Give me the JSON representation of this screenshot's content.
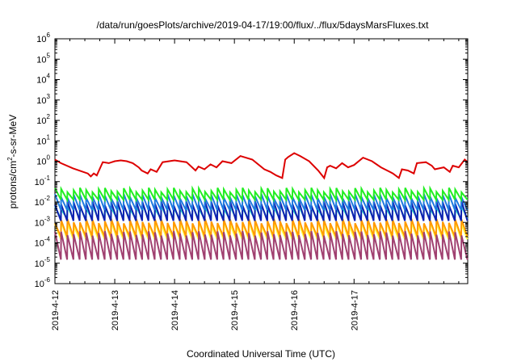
{
  "chart_data": {
    "type": "line",
    "title": "/data/run/goesPlots/archive/2019-04-17/19:00/flux/../flux/5daysMarsFluxes.txt",
    "xlabel": "Coordinated Universal Time (UTC)",
    "ylabel": {
      "base": "protons/cm",
      "sup": "2",
      "rest": "-s-sr-MeV"
    },
    "yscale": "log",
    "ylim_exponents": [
      -6,
      6
    ],
    "y_tick_labels": [
      {
        "base": "10",
        "exp": "-6"
      },
      {
        "base": "10",
        "exp": "-5"
      },
      {
        "base": "10",
        "exp": "-4"
      },
      {
        "base": "10",
        "exp": "-3"
      },
      {
        "base": "10",
        "exp": "-2"
      },
      {
        "base": "10",
        "exp": "-1"
      },
      {
        "base": "10",
        "exp": "0"
      },
      {
        "base": "10",
        "exp": "1"
      },
      {
        "base": "10",
        "exp": "2"
      },
      {
        "base": "10",
        "exp": "3"
      },
      {
        "base": "10",
        "exp": "4"
      },
      {
        "base": "10",
        "exp": "5"
      },
      {
        "base": "10",
        "exp": "6"
      }
    ],
    "x_tick_labels": [
      "2019-4-12",
      "2019-4-13",
      "2019-4-14",
      "2019-4-15",
      "2019-4-16",
      "2019-4-17"
    ],
    "xlim_days": [
      0,
      6.9
    ],
    "x_tick_days": [
      0,
      1,
      2,
      3,
      4,
      5
    ],
    "grid": false,
    "legend": "none",
    "series": [
      {
        "color": "#dd0000",
        "x": [
          0,
          0.1,
          0.3,
          0.55,
          0.6,
          0.65,
          0.7,
          0.76,
          0.8,
          0.9,
          1,
          1.1,
          1.2,
          1.3,
          1.4,
          1.45,
          1.55,
          1.6,
          1.7,
          1.8,
          2,
          2.2,
          2.35,
          2.4,
          2.5,
          2.6,
          2.7,
          2.8,
          2.95,
          3.1,
          3.3,
          3.5,
          3.6,
          3.7,
          3.8,
          3.85,
          3.9,
          4,
          4.1,
          4.25,
          4.4,
          4.5,
          4.55,
          4.6,
          4.7,
          4.8,
          4.9,
          5,
          5.15,
          5.3,
          5.45,
          5.6,
          5.65,
          5.75,
          5.8,
          5.9,
          6.0,
          6.05,
          6.2,
          6.3,
          6.35,
          6.5,
          6.6,
          6.65,
          6.75,
          6.85,
          6.9
        ],
        "y": [
          1.2,
          0.8,
          0.45,
          0.25,
          0.18,
          0.25,
          0.2,
          0.5,
          0.9,
          0.8,
          1.0,
          1.1,
          1.0,
          0.8,
          0.5,
          0.35,
          0.25,
          0.4,
          0.3,
          0.9,
          1.1,
          0.9,
          0.35,
          0.55,
          0.4,
          0.7,
          0.5,
          1.0,
          0.8,
          1.8,
          1.2,
          0.4,
          0.3,
          0.2,
          0.15,
          1.2,
          1.6,
          2.5,
          1.8,
          1.0,
          0.35,
          0.15,
          0.5,
          0.6,
          0.45,
          0.8,
          0.5,
          0.65,
          1.5,
          1.0,
          0.5,
          0.3,
          0.25,
          0.15,
          0.4,
          0.35,
          0.25,
          0.8,
          0.9,
          0.6,
          0.4,
          0.5,
          0.3,
          0.6,
          0.5,
          1.2,
          0.9
        ]
      },
      {
        "color": "#22ee22",
        "x": [
          0,
          6.9
        ],
        "y": [
          0.03,
          0.03
        ],
        "sawtooth": {
          "periods": 66,
          "low": 0.013,
          "high": 0.04
        }
      },
      {
        "color": "#1f7ae0",
        "x": [
          0,
          6.9
        ],
        "y": [
          0.012,
          0.012
        ],
        "sawtooth": {
          "periods": 66,
          "low": 0.004,
          "high": 0.02
        }
      },
      {
        "color": "#22d6c8",
        "x": [
          0,
          6.9
        ],
        "y": [
          0.003,
          0.003
        ],
        "sawtooth": {
          "periods": 66,
          "low": 0.0015,
          "high": 0.006
        }
      },
      {
        "color": "#1020b0",
        "x": [
          0,
          6.9
        ],
        "y": [
          0.004,
          0.004
        ],
        "sawtooth": {
          "periods": 66,
          "low": 0.0012,
          "high": 0.009
        }
      },
      {
        "color": "#ff9900",
        "x": [
          0,
          6.9
        ],
        "y": [
          0.0004,
          0.0004
        ],
        "sawtooth": {
          "periods": 66,
          "low": 0.0002,
          "high": 0.0012
        }
      },
      {
        "color": "#ffff44",
        "x": [
          0,
          6.9
        ],
        "y": [
          0.0005,
          0.0005
        ],
        "sawtooth": {
          "periods": 66,
          "low": 0.00015,
          "high": 0.0009
        }
      },
      {
        "color": "#a04070",
        "x": [
          0,
          6.9
        ],
        "y": [
          6e-05,
          6e-05
        ],
        "sawtooth": {
          "periods": 66,
          "low": 1.5e-05,
          "high": 0.0003
        }
      }
    ]
  }
}
